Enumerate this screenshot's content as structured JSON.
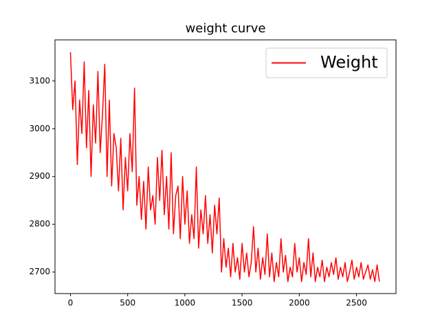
{
  "chart_data": {
    "type": "line",
    "title": "weight curve",
    "legend": "upper right",
    "xlim": [
      -135,
      2845
    ],
    "ylim": [
      2655,
      3186
    ],
    "xticks": [
      0,
      500,
      1000,
      1500,
      2000,
      2500
    ],
    "yticks": [
      2700,
      2800,
      2900,
      3000,
      3100
    ],
    "x": [
      0,
      20,
      40,
      60,
      80,
      100,
      120,
      140,
      160,
      180,
      200,
      220,
      240,
      260,
      280,
      300,
      320,
      340,
      360,
      380,
      400,
      420,
      440,
      460,
      480,
      500,
      520,
      540,
      560,
      580,
      600,
      620,
      640,
      660,
      680,
      700,
      720,
      740,
      760,
      780,
      800,
      820,
      840,
      860,
      880,
      900,
      920,
      940,
      960,
      980,
      1000,
      1020,
      1040,
      1060,
      1080,
      1100,
      1120,
      1140,
      1160,
      1180,
      1200,
      1220,
      1240,
      1260,
      1280,
      1300,
      1320,
      1340,
      1360,
      1380,
      1400,
      1420,
      1440,
      1460,
      1480,
      1500,
      1520,
      1540,
      1560,
      1580,
      1600,
      1620,
      1640,
      1660,
      1680,
      1700,
      1720,
      1740,
      1760,
      1780,
      1800,
      1820,
      1840,
      1860,
      1880,
      1900,
      1920,
      1940,
      1960,
      1980,
      2000,
      2020,
      2040,
      2060,
      2080,
      2100,
      2120,
      2140,
      2160,
      2180,
      2200,
      2220,
      2240,
      2260,
      2280,
      2300,
      2320,
      2340,
      2360,
      2380,
      2400,
      2420,
      2440,
      2460,
      2480,
      2500,
      2520,
      2540,
      2560,
      2580,
      2600,
      2620,
      2640,
      2660,
      2680,
      2700
    ],
    "series": [
      {
        "name": "Weight",
        "color": "#ff0000",
        "values": [
          3160,
          3040,
          3100,
          2925,
          3060,
          2990,
          3140,
          2960,
          3080,
          2900,
          3050,
          2970,
          3120,
          2950,
          3030,
          3135,
          2900,
          3060,
          2880,
          2990,
          2960,
          2870,
          2980,
          2830,
          2940,
          2870,
          2990,
          2910,
          3085,
          2840,
          2900,
          2810,
          2890,
          2790,
          2920,
          2830,
          2860,
          2800,
          2940,
          2850,
          2955,
          2820,
          2900,
          2790,
          2950,
          2780,
          2860,
          2880,
          2770,
          2900,
          2800,
          2870,
          2760,
          2820,
          2770,
          2920,
          2750,
          2830,
          2780,
          2860,
          2760,
          2820,
          2740,
          2840,
          2780,
          2855,
          2700,
          2770,
          2710,
          2750,
          2690,
          2760,
          2700,
          2730,
          2685,
          2760,
          2700,
          2740,
          2690,
          2720,
          2795,
          2700,
          2750,
          2685,
          2730,
          2695,
          2780,
          2690,
          2740,
          2680,
          2720,
          2690,
          2770,
          2700,
          2735,
          2680,
          2710,
          2690,
          2760,
          2700,
          2730,
          2680,
          2720,
          2695,
          2770,
          2690,
          2740,
          2680,
          2710,
          2690,
          2725,
          2680,
          2710,
          2690,
          2720,
          2695,
          2730,
          2685,
          2710,
          2690,
          2720,
          2680,
          2700,
          2725,
          2685,
          2710,
          2690,
          2720,
          2685,
          2700,
          2715,
          2685,
          2705,
          2680,
          2715,
          2680
        ]
      }
    ]
  }
}
